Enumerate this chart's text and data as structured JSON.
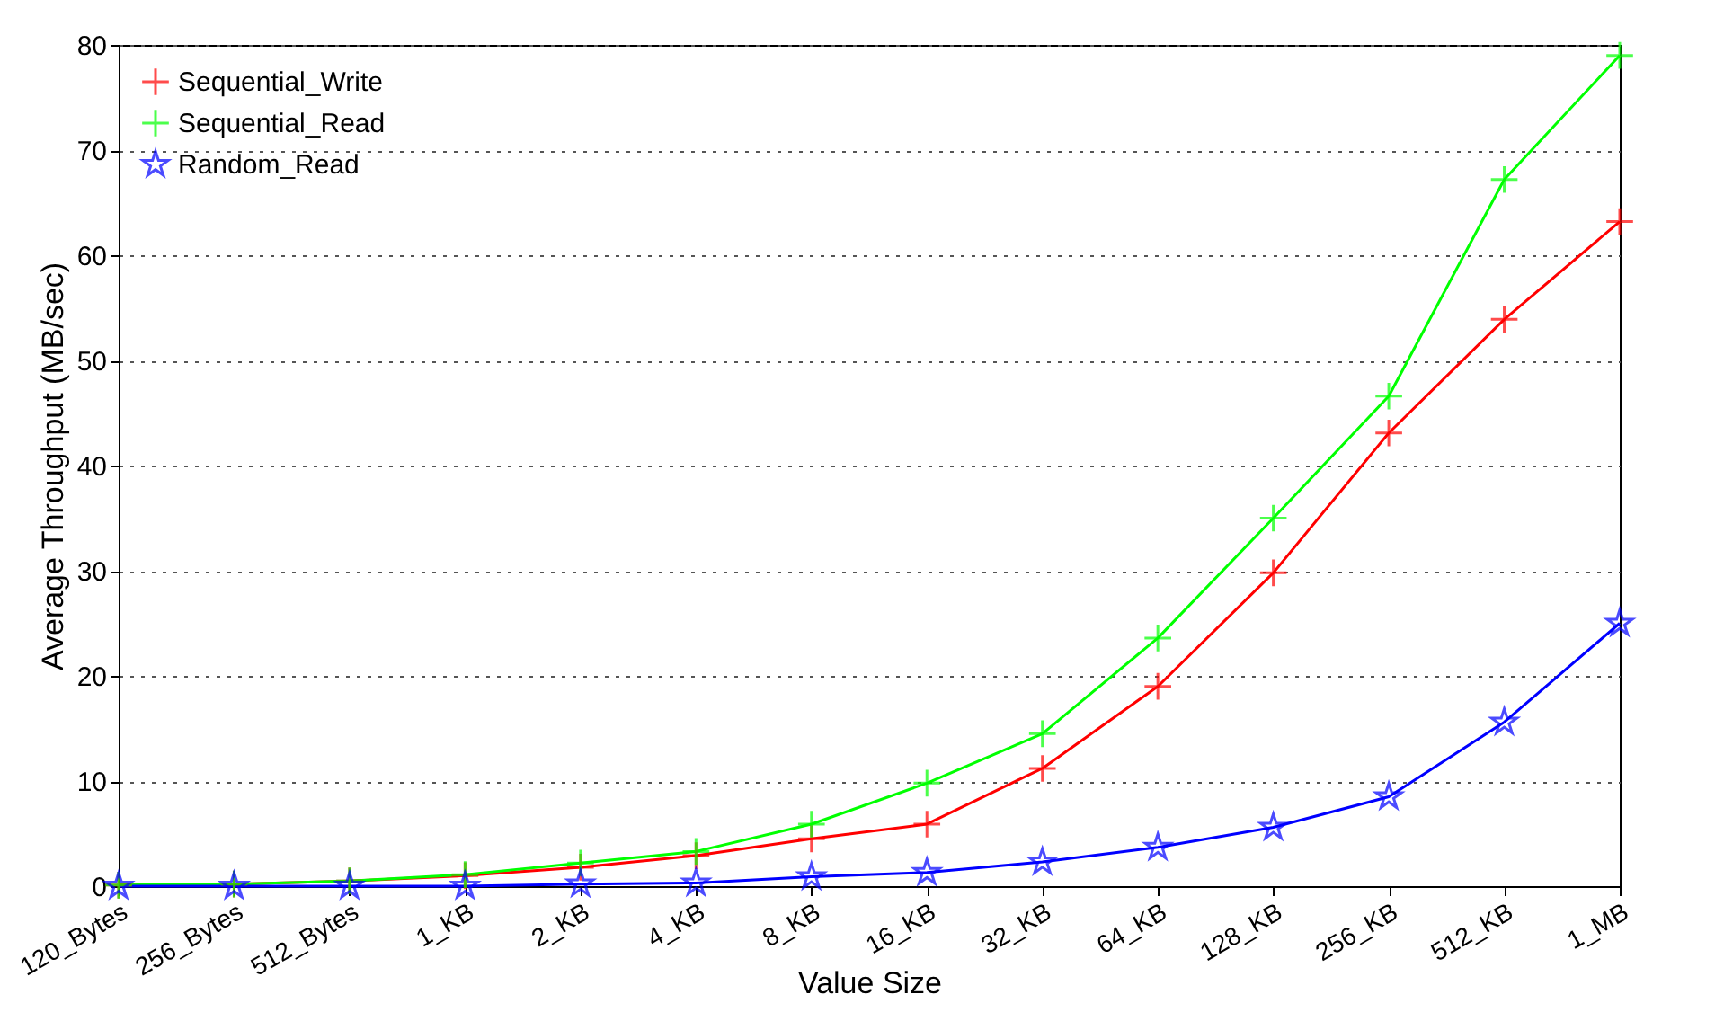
{
  "chart_data": {
    "type": "line",
    "xlabel": "Value Size",
    "ylabel": "Average Throughput (MB/sec)",
    "categories": [
      "120_Bytes",
      "256_Bytes",
      "512_Bytes",
      "1_KB",
      "2_KB",
      "4_KB",
      "8_KB",
      "16_KB",
      "32_KB",
      "64_KB",
      "128_KB",
      "256_KB",
      "512_KB",
      "1_MB"
    ],
    "series": [
      {
        "name": "Sequential_Write",
        "color": "#ff0000",
        "marker": "cross",
        "values": [
          0.1,
          0.2,
          0.5,
          1.0,
          1.8,
          2.9,
          4.5,
          5.9,
          11.2,
          19.0,
          29.8,
          43.1,
          53.9,
          63.2
        ]
      },
      {
        "name": "Sequential_Read",
        "color": "#00ff00",
        "marker": "cross",
        "values": [
          0.1,
          0.2,
          0.5,
          1.1,
          2.2,
          3.3,
          5.9,
          9.8,
          14.5,
          23.6,
          35.0,
          46.6,
          67.2,
          79.0
        ]
      },
      {
        "name": "Random_Read",
        "color": "#0000ff",
        "marker": "star",
        "values": [
          0.0,
          0.0,
          0.0,
          0.0,
          0.2,
          0.3,
          0.9,
          1.3,
          2.3,
          3.7,
          5.6,
          8.5,
          15.6,
          25.0
        ]
      }
    ],
    "ylim": [
      0,
      80
    ],
    "yticks": [
      0,
      10,
      20,
      30,
      40,
      50,
      60,
      70,
      80
    ],
    "grid": "y",
    "legend": "top left",
    "line_style": "solid"
  }
}
